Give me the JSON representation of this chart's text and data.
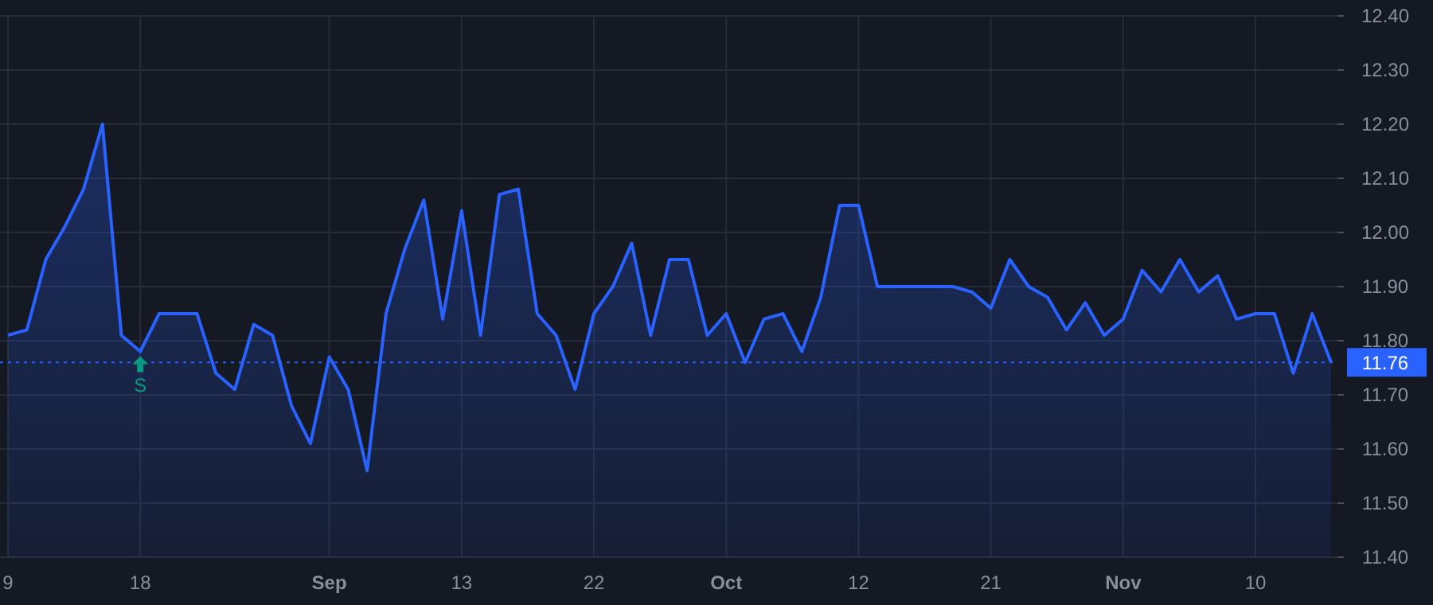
{
  "chart_data": {
    "type": "area",
    "categories": [
      "9",
      null,
      null,
      null,
      null,
      null,
      null,
      "18",
      null,
      null,
      null,
      null,
      null,
      null,
      null,
      null,
      null,
      "Sep",
      null,
      null,
      null,
      null,
      null,
      null,
      "13",
      null,
      null,
      null,
      null,
      null,
      null,
      "22",
      null,
      null,
      null,
      null,
      null,
      null,
      "Oct",
      null,
      null,
      null,
      null,
      null,
      null,
      "12",
      null,
      null,
      null,
      null,
      null,
      null,
      "21",
      null,
      null,
      null,
      null,
      null,
      null,
      "Nov",
      null,
      null,
      null,
      null,
      null,
      null,
      "10",
      null,
      null,
      null,
      null
    ],
    "series": [
      {
        "color": "#2962ff",
        "values": [
          11.81,
          11.82,
          11.95,
          12.01,
          12.08,
          12.2,
          11.81,
          11.78,
          11.85,
          11.85,
          11.85,
          11.74,
          11.71,
          11.83,
          11.81,
          11.68,
          11.61,
          11.77,
          11.71,
          11.56,
          11.85,
          11.97,
          12.06,
          11.84,
          12.04,
          11.81,
          12.07,
          12.08,
          11.85,
          11.81,
          11.71,
          11.85,
          11.9,
          11.98,
          11.81,
          11.95,
          11.95,
          11.81,
          11.85,
          11.76,
          11.84,
          11.85,
          11.78,
          11.88,
          12.05,
          12.05,
          11.9,
          11.9,
          11.9,
          11.9,
          11.9,
          11.89,
          11.86,
          11.95,
          11.9,
          11.88,
          11.82,
          11.87,
          11.81,
          11.84,
          11.93,
          11.89,
          11.95,
          11.89,
          11.92,
          11.84,
          11.85,
          11.85,
          11.74,
          11.85,
          11.76
        ]
      }
    ],
    "ylim": [
      11.4,
      12.4
    ],
    "yticks": [
      {
        "value": 11.4,
        "label": "11.40"
      },
      {
        "value": 11.5,
        "label": "11.50"
      },
      {
        "value": 11.6,
        "label": "11.60"
      },
      {
        "value": 11.7,
        "label": "11.70"
      },
      {
        "value": 11.8,
        "label": "11.80"
      },
      {
        "value": 11.9,
        "label": "11.90"
      },
      {
        "value": 12.0,
        "label": "12.00"
      },
      {
        "value": 12.1,
        "label": "12.10"
      },
      {
        "value": 12.2,
        "label": "12.20"
      },
      {
        "value": 12.3,
        "label": "12.30"
      },
      {
        "value": 12.4,
        "label": "12.40"
      }
    ],
    "grid": true,
    "ref_lines": [
      {
        "axis": "y",
        "value": 11.76,
        "label": "11.76",
        "color": "#2962ff",
        "line_style": "dotted"
      }
    ],
    "annotations": [
      {
        "text": "S",
        "x": "18",
        "y": 11.78
      }
    ]
  }
}
